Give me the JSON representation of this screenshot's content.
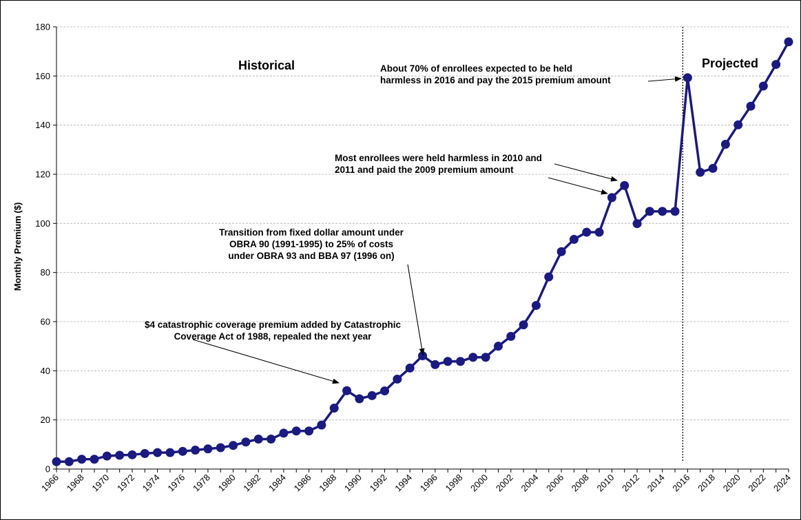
{
  "chart_data": {
    "type": "line",
    "title": "",
    "xlabel": "",
    "ylabel": "Monthly Premium ($)",
    "ylim": [
      0,
      180
    ],
    "yticks": [
      0,
      20,
      40,
      60,
      80,
      100,
      120,
      140,
      160,
      180
    ],
    "xlim": [
      1966,
      2024
    ],
    "xticks": [
      1966,
      1968,
      1970,
      1972,
      1974,
      1976,
      1978,
      1980,
      1982,
      1984,
      1986,
      1988,
      1990,
      1992,
      1994,
      1996,
      1998,
      2000,
      2002,
      2004,
      2006,
      2008,
      2010,
      2012,
      2014,
      2016,
      2018,
      2020,
      2022,
      2024
    ],
    "grid": true,
    "legend": "none",
    "series_color": "#1a1a80",
    "x": [
      1966,
      1967,
      1968,
      1969,
      1970,
      1971,
      1972,
      1973,
      1974,
      1975,
      1976,
      1977,
      1978,
      1979,
      1980,
      1981,
      1982,
      1983,
      1984,
      1985,
      1986,
      1987,
      1988,
      1989,
      1990,
      1991,
      1992,
      1993,
      1994,
      1995,
      1996,
      1997,
      1998,
      1999,
      2000,
      2001,
      2002,
      2003,
      2004,
      2005,
      2006,
      2007,
      2008,
      2009,
      2010,
      2011,
      2012,
      2013,
      2014,
      2015,
      2016,
      2017,
      2018,
      2019,
      2020,
      2021,
      2022,
      2023,
      2024
    ],
    "values": [
      3.0,
      3.0,
      4.0,
      4.0,
      5.3,
      5.6,
      5.8,
      6.3,
      6.7,
      6.7,
      7.2,
      7.7,
      8.2,
      8.7,
      9.6,
      11.0,
      12.2,
      12.2,
      14.6,
      15.5,
      15.5,
      17.9,
      24.8,
      31.9,
      28.6,
      29.9,
      31.8,
      36.6,
      41.1,
      46.1,
      42.5,
      43.8,
      43.8,
      45.5,
      45.5,
      50.0,
      54.0,
      58.7,
      66.6,
      78.2,
      88.5,
      93.5,
      96.4,
      96.4,
      110.5,
      115.4,
      99.9,
      104.9,
      104.9,
      104.9,
      159.3,
      120.8,
      122.4,
      132.2,
      140.1,
      147.7,
      155.9,
      164.7,
      173.9
    ],
    "regions": {
      "left_label": "Historical",
      "right_label": "Projected",
      "divider_year": 2016
    },
    "annotations": [
      {
        "id": "catastrophic",
        "lines": [
          "$4 catastrophic coverage premium added by Catastrophic",
          "Coverage Act of 1988, repealed the next year"
        ],
        "target_years": [
          1989
        ]
      },
      {
        "id": "transition",
        "lines": [
          "Transition from fixed dollar amount under",
          "OBRA 90 (1991-1995) to 25% of costs",
          "under OBRA 93 and BBA 97 (1996 on)"
        ],
        "target_years": [
          1995
        ]
      },
      {
        "id": "hold-harmless-2010",
        "lines": [
          "Most enrollees were held harmless in 2010 and",
          "2011 and paid the 2009 premium amount"
        ],
        "target_years": [
          2010,
          2011
        ]
      },
      {
        "id": "hold-harmless-2016",
        "lines": [
          "About 70% of enrollees expected to be held",
          "harmless in 2016 and pay the 2015 premium amount"
        ],
        "target_years": [
          2016
        ]
      }
    ]
  }
}
